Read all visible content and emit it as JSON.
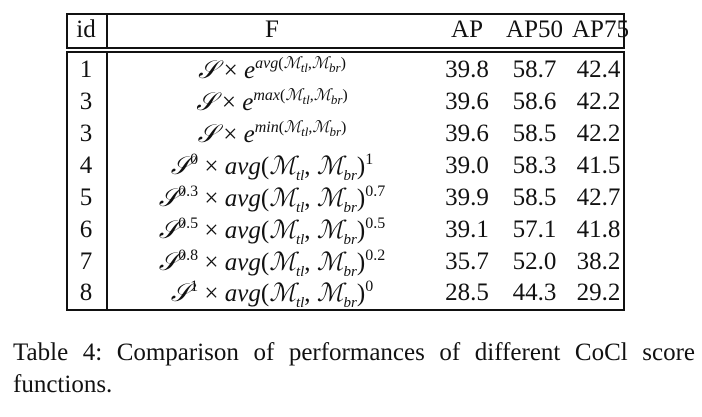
{
  "table": {
    "headers": {
      "id": "id",
      "f": "F",
      "ap": "AP",
      "ap50": "AP50",
      "ap75": "AP75"
    },
    "rows": [
      {
        "id": "1",
        "ap": "39.8",
        "ap50": "58.7",
        "ap75": "42.4"
      },
      {
        "id": "3",
        "ap": "39.6",
        "ap50": "58.6",
        "ap75": "42.2"
      },
      {
        "id": "3",
        "ap": "39.6",
        "ap50": "58.5",
        "ap75": "42.2"
      },
      {
        "id": "4",
        "ap": "39.0",
        "ap50": "58.3",
        "ap75": "41.5"
      },
      {
        "id": "5",
        "ap": "39.9",
        "ap50": "58.5",
        "ap75": "42.7"
      },
      {
        "id": "6",
        "ap": "39.1",
        "ap50": "57.1",
        "ap75": "41.8"
      },
      {
        "id": "7",
        "ap": "35.7",
        "ap50": "52.0",
        "ap75": "38.2"
      },
      {
        "id": "8",
        "ap": "28.5",
        "ap50": "44.3",
        "ap75": "29.2"
      }
    ]
  },
  "formulas": {
    "S": "𝒮",
    "M": "ℳ",
    "tl": "tl",
    "br": "br",
    "times": "×",
    "e": "e",
    "avg": "avg",
    "max": "max",
    "min": "min",
    "exps": [
      "0",
      "0.3",
      "0.5",
      "0.8",
      "1"
    ],
    "powers": [
      "1",
      "0.7",
      "0.5",
      "0.2",
      "0"
    ]
  },
  "caption": "Table 4:  Comparison of performances of different CoCl score functions."
}
